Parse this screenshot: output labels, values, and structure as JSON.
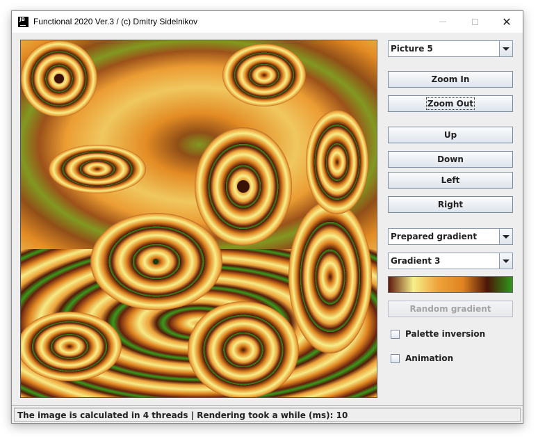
{
  "window": {
    "title": "Functional 2020 Ver.3 / (c) Dmitry Sidelnikov",
    "app_icon_text": "JB",
    "controls": {
      "minimize": "minimize-icon",
      "maximize": "maximize-icon",
      "close": "close-icon",
      "close_glyph": "✕"
    }
  },
  "canvas": {
    "description_icon": "fractal-image",
    "gradient_stops": [
      "#5e1a0c",
      "#f6ef8a",
      "#eea23a",
      "#e08420",
      "#4a1508",
      "#2f9a1a"
    ]
  },
  "panel": {
    "picture_select": {
      "value": "Picture 5"
    },
    "zoom_in": "Zoom In",
    "zoom_out": "Zoom Out",
    "up": "Up",
    "down": "Down",
    "left": "Left",
    "right": "Right",
    "gradient_mode_select": {
      "value": "Prepared gradient"
    },
    "gradient_select": {
      "value": "Gradient 3"
    },
    "random_gradient": "Random gradient",
    "palette_inversion": {
      "label": "Palette inversion",
      "checked": false
    },
    "animation": {
      "label": "Animation",
      "checked": false
    }
  },
  "status": {
    "text": "The image is calculated in 4 threads | Rendering took a while (ms): 10"
  },
  "colors": {
    "window_bg": "#eeeeee",
    "button_border": "#7a8a9e",
    "disabled_text": "#a4a4a4"
  }
}
